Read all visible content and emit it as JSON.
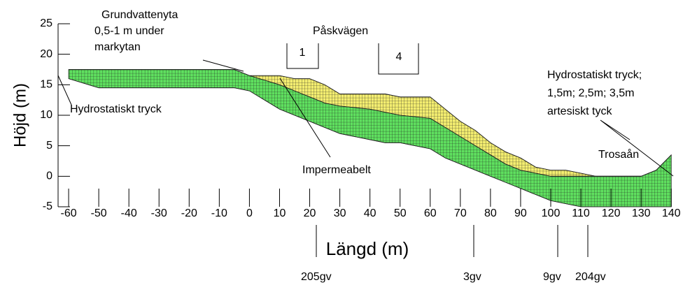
{
  "chart_data": {
    "type": "cross-section",
    "xlabel": "Längd (m)",
    "ylabel": "Höjd (m)",
    "xlim": [
      -63.5,
      142.5
    ],
    "ylim": [
      -5,
      25
    ],
    "xticks": [
      -60,
      -50,
      -40,
      -30,
      -20,
      -10,
      0,
      10,
      20,
      30,
      40,
      50,
      60,
      70,
      80,
      90,
      100,
      110,
      120,
      130,
      140
    ],
    "yticks": [
      -5,
      0,
      5,
      10,
      15,
      20,
      25
    ],
    "x": [
      -60,
      -50,
      -5,
      0,
      10,
      15,
      20,
      25,
      30,
      40,
      45,
      50,
      60,
      65,
      70,
      75,
      80,
      85,
      90,
      95,
      100,
      105,
      110,
      115,
      120,
      130,
      135,
      140
    ],
    "series": [
      {
        "color": "#f4ee70",
        "values": [
          17.5,
          17.5,
          17.5,
          16.5,
          16.5,
          16,
          16,
          15,
          13.5,
          13.5,
          13.5,
          13,
          13,
          11,
          9,
          7.5,
          5.5,
          4,
          3,
          1.5,
          1,
          1,
          0.5,
          0,
          0,
          0,
          1,
          3.5
        ]
      },
      {
        "color": "#5fe05f",
        "values": [
          17.5,
          17.5,
          17.5,
          16.5,
          15,
          14,
          13,
          12,
          11.5,
          11,
          10.5,
          10,
          9.5,
          8,
          6.5,
          5,
          3.5,
          2,
          1,
          0.5,
          0,
          0,
          0,
          0,
          0,
          0,
          1,
          3.5
        ]
      },
      {
        "color": "#111111",
        "values": [
          16,
          14.5,
          14.5,
          14,
          11,
          10,
          9,
          8,
          7,
          6,
          5.5,
          5.5,
          4.5,
          3,
          2,
          1,
          0,
          -1,
          -2,
          -3,
          -4,
          -4.5,
          -5,
          -5,
          -5,
          -5,
          -5,
          -5
        ]
      }
    ],
    "annotations": [
      "Grundvattenyta",
      "0,5-1 m under",
      "markytan",
      "Påskvägen",
      "1",
      "4",
      "Hydrostatiskt tryck",
      "Hydrostatiskt tryck;",
      "1,5m; 2,5m; 3,5m",
      "artesiskt tyck",
      "Trosaån",
      "Impermeabelt"
    ],
    "boreholes": [
      "205gv",
      "3gv",
      "9gv",
      "204gv"
    ]
  }
}
